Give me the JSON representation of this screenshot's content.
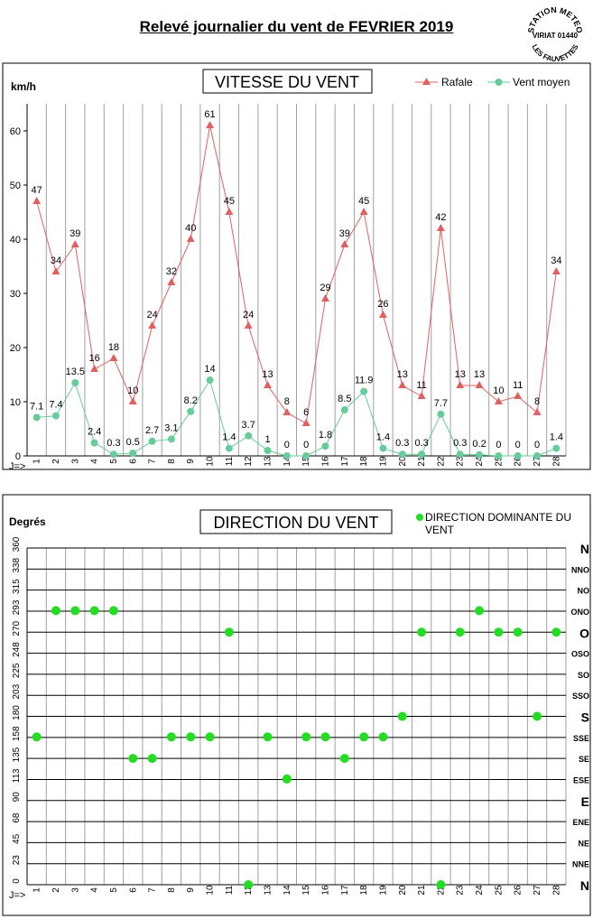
{
  "page": {
    "title": "Relevé journalier du vent de FEVRIER 2019",
    "stamp": {
      "lines": [
        "STATION METEO",
        "VIRIAT 01440",
        "LES FAUVETTES"
      ]
    }
  },
  "chart_data": [
    {
      "type": "line",
      "title": "VITESSE DU VENT",
      "ylabel": "km/h",
      "x_prefix": "J=>",
      "ylim": [
        0,
        65
      ],
      "yticks": [
        0,
        10,
        20,
        30,
        40,
        50,
        60
      ],
      "grid": true,
      "legend_position": "top-right",
      "x": [
        1,
        2,
        3,
        4,
        5,
        6,
        7,
        8,
        9,
        10,
        11,
        12,
        13,
        14,
        15,
        16,
        17,
        18,
        19,
        20,
        21,
        22,
        23,
        24,
        25,
        26,
        27,
        28
      ],
      "series": [
        {
          "name": "Rafale",
          "color": "#e06060",
          "marker": "triangle",
          "values": [
            47,
            34,
            39,
            16,
            18,
            10,
            24,
            32,
            40,
            61,
            45,
            24,
            13,
            8,
            6,
            29,
            39,
            45,
            26,
            13,
            11,
            42,
            13,
            13,
            10,
            11,
            8,
            34
          ],
          "labels": [
            "47",
            "34",
            "39",
            "16",
            "18",
            "10",
            "24",
            "32",
            "40",
            "61",
            "45",
            "24",
            "13",
            "8",
            "6",
            "29",
            "39",
            "45",
            "26",
            "13",
            "11",
            "42",
            "13",
            "13",
            "10",
            "11",
            "8",
            "34"
          ]
        },
        {
          "name": "Vent moyen",
          "color": "#66cc99",
          "marker": "circle",
          "values": [
            7.1,
            7.4,
            13.5,
            2.4,
            0.3,
            0.5,
            2.7,
            3.1,
            8.2,
            14,
            1.4,
            3.7,
            1,
            0,
            0,
            1.8,
            8.5,
            11.9,
            1.4,
            0.3,
            0.3,
            7.7,
            0.3,
            0.2,
            0,
            0,
            0,
            1.4
          ],
          "labels": [
            "7.1",
            "7.4",
            "13.5",
            "2.4",
            "0.3",
            "0.5",
            "2.7",
            "3.1",
            "8.2",
            "14",
            "1.4",
            "3.7",
            "1",
            "0",
            "0",
            "1.8",
            "8.5",
            "11.9",
            "1.4",
            "0.3",
            "0.3",
            "7.7",
            "0.3",
            "0.2",
            "0",
            "0",
            "0",
            "1.4"
          ]
        }
      ]
    },
    {
      "type": "scatter",
      "title": "DIRECTION DU VENT",
      "ylabel": "Degrés",
      "x_prefix": "J=>",
      "ylim": [
        0,
        360
      ],
      "yticks": [
        0,
        23,
        45,
        68,
        90,
        113,
        135,
        158,
        180,
        203,
        225,
        248,
        270,
        293,
        315,
        338,
        360
      ],
      "direction_labels": [
        "N",
        "NNE",
        "NE",
        "ENE",
        "E",
        "ESE",
        "SE",
        "SSE",
        "S",
        "SSO",
        "SO",
        "OSO",
        "O",
        "ONO",
        "NO",
        "NNO",
        "N"
      ],
      "grid": true,
      "legend_position": "top-right",
      "x": [
        1,
        2,
        3,
        4,
        5,
        6,
        7,
        8,
        9,
        10,
        11,
        12,
        13,
        14,
        15,
        16,
        17,
        18,
        19,
        20,
        21,
        22,
        23,
        24,
        25,
        26,
        27,
        28
      ],
      "series": [
        {
          "name": "DIRECTION DOMINANTE DU VENT",
          "color": "#22dd22",
          "values": [
            158,
            293,
            293,
            293,
            293,
            135,
            135,
            158,
            158,
            158,
            270,
            0,
            158,
            113,
            158,
            158,
            135,
            158,
            158,
            180,
            270,
            0,
            270,
            293,
            270,
            270,
            180,
            270
          ]
        }
      ]
    }
  ]
}
